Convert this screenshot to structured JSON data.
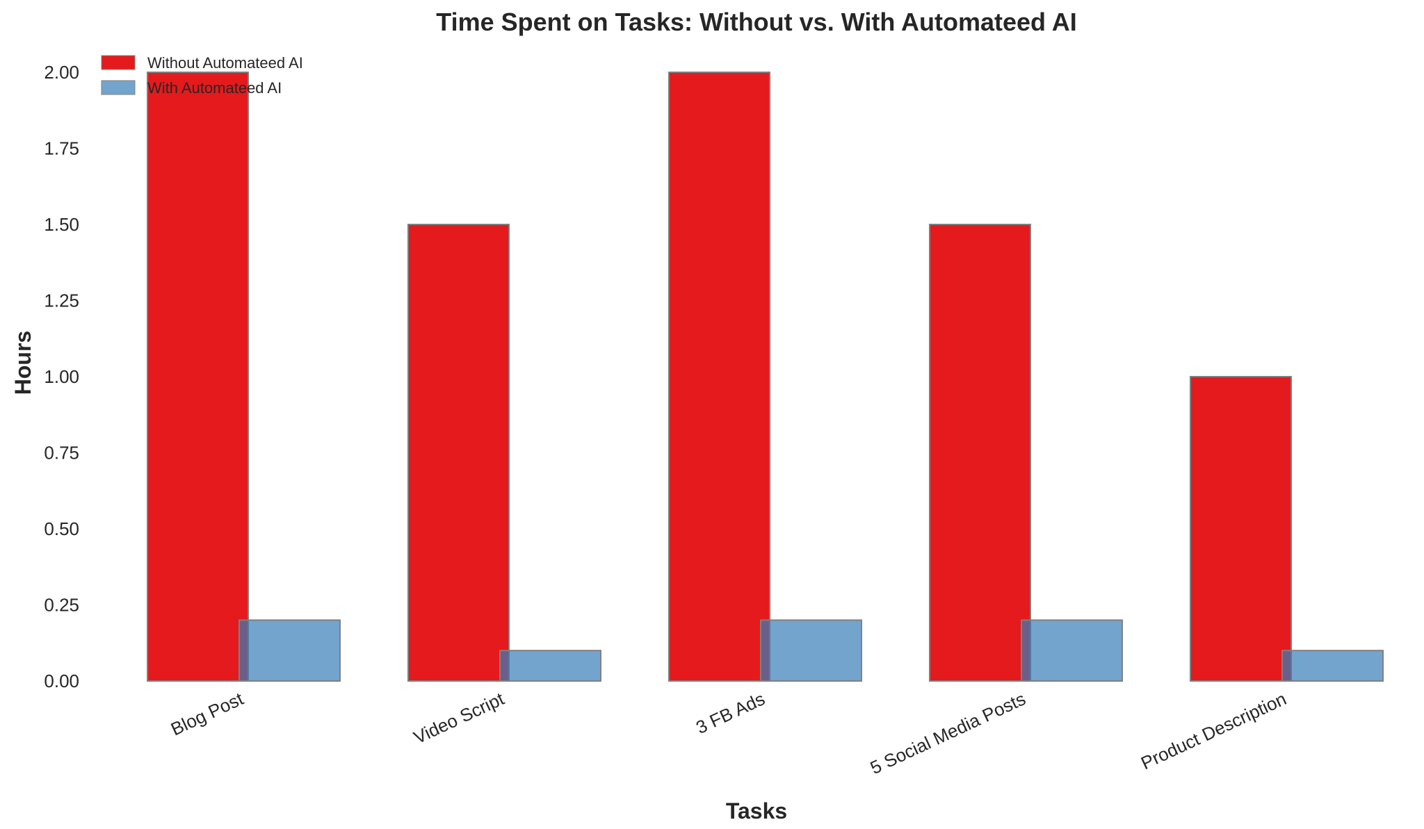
{
  "chart_data": {
    "type": "bar",
    "title": "Time Spent on Tasks: Without vs. With Automateed AI",
    "xlabel": "Tasks",
    "ylabel": "Hours",
    "categories": [
      "Blog Post",
      "Video Script",
      "3 FB Ads",
      "5 Social Media Posts",
      "Product Description"
    ],
    "series": [
      {
        "name": "Without Automateed AI",
        "values": [
          2.0,
          1.5,
          2.0,
          1.5,
          1.0
        ],
        "color": "#e41a1c"
      },
      {
        "name": "With Automateed AI",
        "values": [
          0.2,
          0.1,
          0.2,
          0.2,
          0.1
        ],
        "color": "#377eb8"
      }
    ],
    "ylim": [
      0,
      2.0
    ],
    "yticks": [
      "0.00",
      "0.25",
      "0.50",
      "0.75",
      "1.00",
      "1.25",
      "1.50",
      "1.75",
      "2.00"
    ],
    "grid": false,
    "legend_position": "top-left"
  }
}
